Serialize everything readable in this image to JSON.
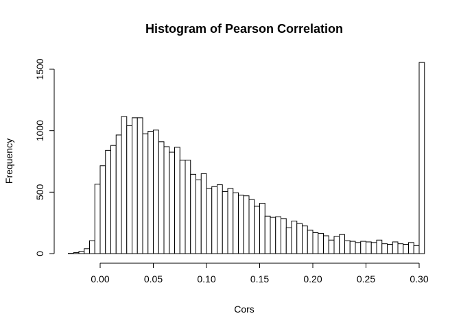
{
  "chart_data": {
    "type": "bar",
    "title": "Histogram of Pearson Correlation",
    "xlabel": "Cors",
    "ylabel": "Frequency",
    "bin_width": 0.005,
    "x_start": -0.03,
    "xlim": [
      -0.03,
      0.3
    ],
    "ylim": [
      0,
      1550
    ],
    "x_ticks": [
      0.0,
      0.05,
      0.1,
      0.15,
      0.2,
      0.25,
      0.3
    ],
    "x_tick_labels": [
      "0.00",
      "0.05",
      "0.10",
      "0.15",
      "0.20",
      "0.25",
      "0.30"
    ],
    "y_ticks": [
      0,
      500,
      1000,
      1500
    ],
    "y_tick_labels": [
      "0",
      "500",
      "1000",
      "1500"
    ],
    "values": [
      2,
      8,
      18,
      40,
      105,
      565,
      715,
      840,
      880,
      965,
      1115,
      1040,
      1105,
      1105,
      975,
      995,
      1005,
      910,
      870,
      825,
      865,
      760,
      760,
      645,
      600,
      650,
      530,
      545,
      560,
      505,
      530,
      495,
      475,
      470,
      440,
      385,
      410,
      305,
      295,
      300,
      285,
      210,
      265,
      245,
      225,
      190,
      170,
      165,
      145,
      110,
      140,
      155,
      105,
      100,
      90,
      100,
      95,
      90,
      110,
      80,
      75,
      95,
      80,
      75,
      90,
      65,
      1555
    ],
    "grid": false
  }
}
